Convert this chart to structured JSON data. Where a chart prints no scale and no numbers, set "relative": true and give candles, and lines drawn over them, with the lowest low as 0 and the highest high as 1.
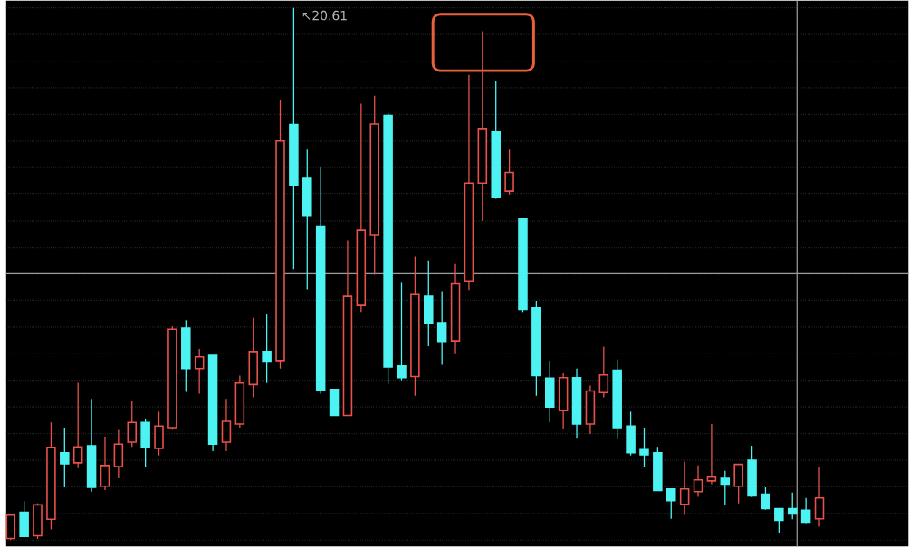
{
  "chart_data": {
    "type": "candlestick",
    "relative": true,
    "grid": "y",
    "categories": [
      null,
      null,
      null,
      null,
      null,
      null,
      null,
      null,
      null,
      null,
      null,
      null,
      null,
      null,
      null,
      null,
      null,
      null,
      null,
      null,
      null,
      null,
      null,
      null,
      null,
      null,
      null,
      null,
      null,
      null,
      null,
      null,
      null,
      null,
      null,
      null,
      null,
      null,
      null,
      null,
      null,
      null,
      null,
      null,
      null,
      null,
      null,
      null,
      null,
      null,
      null,
      null,
      null,
      null,
      null,
      null,
      null,
      null,
      null,
      null,
      null
    ],
    "ohlc": [
      [
        0.003,
        0.049,
        0,
        0.047
      ],
      [
        0.052,
        0.073,
        0.005,
        0.007
      ],
      [
        0.008,
        0.069,
        0.002,
        0.066
      ],
      [
        0.039,
        0.221,
        0.02,
        0.174
      ],
      [
        0.164,
        0.211,
        0.099,
        0.143
      ],
      [
        0.145,
        0.295,
        0.135,
        0.175
      ],
      [
        0.177,
        0.265,
        0.091,
        0.099
      ],
      [
        0.101,
        0.194,
        0.094,
        0.14
      ],
      [
        0.138,
        0.207,
        0.116,
        0.18
      ],
      [
        0.184,
        0.261,
        0.175,
        0.221
      ],
      [
        0.221,
        0.228,
        0.137,
        0.175
      ],
      [
        0.172,
        0.241,
        0.159,
        0.214
      ],
      [
        0.211,
        0.401,
        0.207,
        0.396
      ],
      [
        0.398,
        0.413,
        0.278,
        0.322
      ],
      [
        0.322,
        0.359,
        0.275,
        0.344
      ],
      [
        0.347,
        0.347,
        0.167,
        0.18
      ],
      [
        0.184,
        0.265,
        0.167,
        0.223
      ],
      [
        0.218,
        0.309,
        0.211,
        0.295
      ],
      [
        0.292,
        0.417,
        0.268,
        0.354
      ],
      [
        0.354,
        0.425,
        0.295,
        0.336
      ],
      [
        0.337,
        0.826,
        0.322,
        0.75
      ],
      [
        0.781,
        1,
        0.508,
        0.666
      ],
      [
        0.68,
        0.734,
        0.47,
        0.609
      ],
      [
        0.589,
        0.7,
        0.275,
        0.282
      ],
      [
        0.283,
        0.283,
        0.234,
        0.234
      ],
      [
        0.234,
        0.562,
        0.234,
        0.459
      ],
      [
        0.442,
        0.82,
        0.428,
        0.583
      ],
      [
        0.573,
        0.835,
        0.499,
        0.782
      ],
      [
        0.798,
        0.803,
        0.293,
        0.325
      ],
      [
        0.327,
        0.484,
        0.3,
        0.305
      ],
      [
        0.307,
        0.533,
        0.271,
        0.462
      ],
      [
        0.459,
        0.524,
        0.364,
        0.408
      ],
      [
        0.408,
        0.467,
        0.329,
        0.373
      ],
      [
        0.374,
        0.519,
        0.351,
        0.482
      ],
      [
        0.486,
        0.874,
        0.469,
        0.671
      ],
      [
        0.671,
        0.956,
        0.6,
        0.772
      ],
      [
        0.767,
        0.862,
        0.642,
        0.644
      ],
      [
        0.656,
        0.734,
        0.648,
        0.691
      ],
      [
        0.604,
        0.604,
        0.428,
        0.433
      ],
      [
        0.437,
        0.449,
        0.271,
        0.309
      ],
      [
        0.304,
        0.337,
        0.221,
        0.25
      ],
      [
        0.243,
        0.314,
        0.209,
        0.305
      ],
      [
        0.305,
        0.322,
        0.192,
        0.218
      ],
      [
        0.218,
        0.29,
        0.199,
        0.28
      ],
      [
        0.277,
        0.363,
        0.268,
        0.31
      ],
      [
        0.319,
        0.339,
        0.191,
        0.211
      ],
      [
        0.214,
        0.241,
        0.159,
        0.164
      ],
      [
        0.17,
        0.211,
        0.138,
        0.16
      ],
      [
        0.164,
        0.175,
        0.093,
        0.093
      ],
      [
        0.096,
        0.096,
        0.04,
        0.074
      ],
      [
        0.067,
        0.147,
        0.047,
        0.096
      ],
      [
        0.091,
        0.14,
        0.081,
        0.113
      ],
      [
        0.111,
        0.218,
        0.105,
        0.118
      ],
      [
        0.116,
        0.13,
        0.066,
        0.105
      ],
      [
        0.101,
        0.142,
        0.069,
        0.142
      ],
      [
        0.15,
        0.177,
        0.081,
        0.083
      ],
      [
        0.086,
        0.099,
        0.057,
        0.059
      ],
      [
        0.059,
        0.059,
        0.013,
        0.037
      ],
      [
        0.059,
        0.089,
        0.039,
        0.049
      ],
      [
        0.056,
        0.079,
        0.03,
        0.032
      ],
      [
        0.04,
        0.137,
        0.025,
        0.079
      ]
    ],
    "colors": [
      "#e8524a",
      "#4df3f3",
      "#e8524a",
      "#e8524a",
      "#4df3f3",
      "#e8524a",
      "#4df3f3",
      "#e8524a",
      "#e8524a",
      "#e8524a",
      "#4df3f3",
      "#e8524a",
      "#e8524a",
      "#4df3f3",
      "#e8524a",
      "#4df3f3",
      "#e8524a",
      "#e8524a",
      "#e8524a",
      "#4df3f3",
      "#e8524a",
      "#4df3f3",
      "#4df3f3",
      "#4df3f3",
      "#4df3f3",
      "#e8524a",
      "#e8524a",
      "#e8524a",
      "#4df3f3",
      "#4df3f3",
      "#e8524a",
      "#4df3f3",
      "#4df3f3",
      "#e8524a",
      "#e8524a",
      "#e8524a",
      "#4df3f3",
      "#e8524a",
      "#4df3f3",
      "#4df3f3",
      "#4df3f3",
      "#e8524a",
      "#4df3f3",
      "#e8524a",
      "#e8524a",
      "#4df3f3",
      "#4df3f3",
      "#4df3f3",
      "#4df3f3",
      "#4df3f3",
      "#e8524a",
      "#e8524a",
      "#e8524a",
      "#4df3f3",
      "#e8524a",
      "#4df3f3",
      "#4df3f3",
      "#4df3f3",
      "#4df3f3",
      "#4df3f3",
      "#e8524a"
    ],
    "annotations": [
      "↖20.61"
    ],
    "ref_lines": [
      {
        "axis": "y",
        "value": 0.501,
        "color": "#9a9a9a"
      }
    ]
  }
}
